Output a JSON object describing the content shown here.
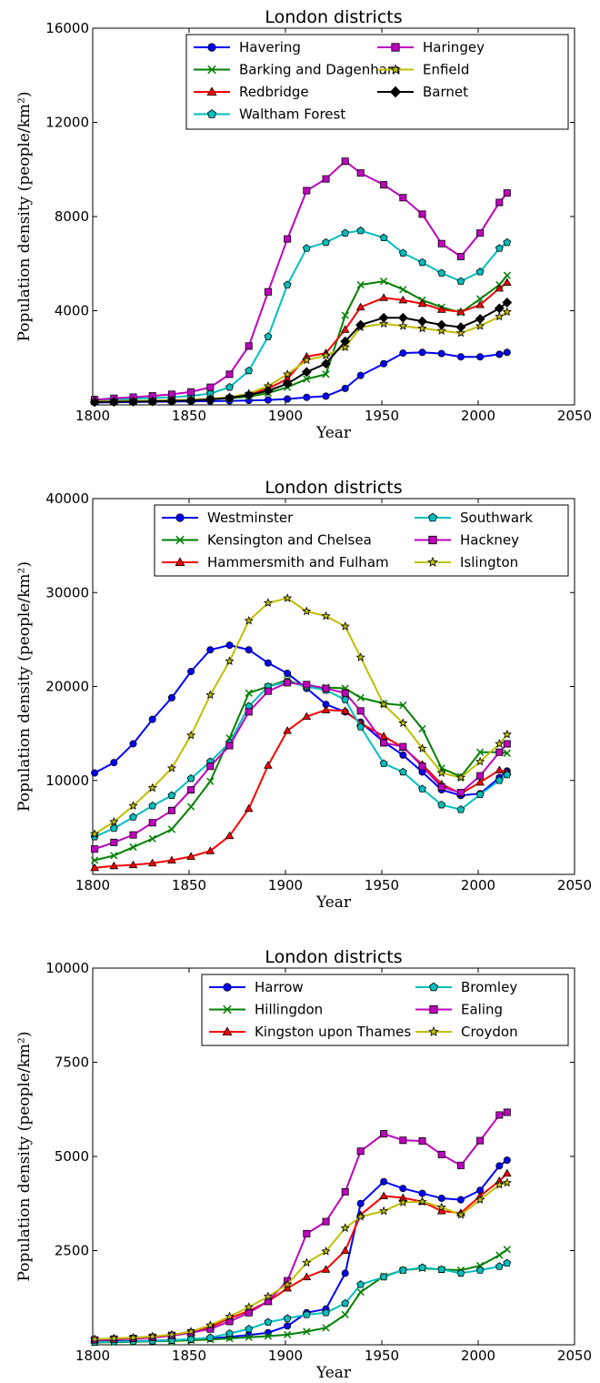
{
  "chart_data": [
    {
      "type": "line",
      "title": "London districts",
      "xlabel": "Year",
      "ylabel": "Population density (people/km²)",
      "xlim": [
        1800,
        2050
      ],
      "ylim": [
        0,
        16000
      ],
      "xticks": [
        1800,
        1850,
        1900,
        1950,
        2000,
        2050
      ],
      "yticks": [
        4000,
        8000,
        12000,
        16000
      ],
      "grid": false,
      "legend": {
        "position": "top-right",
        "columns": 2
      },
      "x": [
        1801,
        1811,
        1821,
        1831,
        1841,
        1851,
        1861,
        1871,
        1881,
        1891,
        1901,
        1911,
        1921,
        1931,
        1939,
        1951,
        1961,
        1971,
        1981,
        1991,
        2001,
        2011,
        2015
      ],
      "series": [
        {
          "name": "Havering",
          "color": "#0000ff",
          "marker": "circle",
          "values": [
            100,
            110,
            120,
            130,
            140,
            150,
            160,
            170,
            190,
            210,
            250,
            320,
            370,
            700,
            1250,
            1750,
            2200,
            2230,
            2180,
            2040,
            2040,
            2150,
            2230
          ]
        },
        {
          "name": "Barking and Dagenham",
          "color": "#008000",
          "marker": "x",
          "values": [
            150,
            160,
            170,
            180,
            190,
            210,
            240,
            280,
            350,
            500,
            750,
            1100,
            1300,
            3800,
            5100,
            5250,
            4900,
            4450,
            4150,
            3920,
            4500,
            5100,
            5500
          ]
        },
        {
          "name": "Redbridge",
          "color": "#ff0000",
          "marker": "triangle",
          "values": [
            150,
            160,
            170,
            180,
            200,
            220,
            260,
            320,
            450,
            700,
            1100,
            2050,
            2200,
            3200,
            4150,
            4550,
            4450,
            4300,
            4050,
            3950,
            4250,
            4950,
            5200
          ]
        },
        {
          "name": "Waltham Forest",
          "color": "#00bfbf",
          "marker": "pentagon",
          "values": [
            220,
            240,
            260,
            290,
            330,
            380,
            480,
            750,
            1450,
            2900,
            5100,
            6650,
            6900,
            7300,
            7400,
            7100,
            6450,
            6050,
            5600,
            5250,
            5650,
            6650,
            6900
          ]
        },
        {
          "name": "Haringey",
          "color": "#bf00bf",
          "marker": "square",
          "values": [
            220,
            280,
            330,
            380,
            450,
            550,
            750,
            1300,
            2500,
            4800,
            7050,
            9100,
            9600,
            10350,
            9850,
            9350,
            8800,
            8100,
            6850,
            6300,
            7300,
            8600,
            9000
          ]
        },
        {
          "name": "Enfield",
          "color": "#bfbf00",
          "marker": "star",
          "values": [
            150,
            160,
            170,
            180,
            200,
            220,
            260,
            330,
            480,
            800,
            1300,
            1900,
            2100,
            2450,
            3300,
            3450,
            3350,
            3250,
            3150,
            3050,
            3350,
            3750,
            3950
          ]
        },
        {
          "name": "Barnet",
          "color": "#000000",
          "marker": "diamond",
          "values": [
            120,
            130,
            140,
            150,
            170,
            190,
            230,
            300,
            420,
            600,
            900,
            1400,
            1750,
            2700,
            3400,
            3700,
            3700,
            3550,
            3400,
            3300,
            3650,
            4100,
            4350
          ]
        }
      ]
    },
    {
      "type": "line",
      "title": "London districts",
      "xlabel": "Year",
      "ylabel": "Population density (people/km²)",
      "xlim": [
        1800,
        2050
      ],
      "ylim": [
        0,
        40000
      ],
      "xticks": [
        1800,
        1850,
        1900,
        1950,
        2000,
        2050
      ],
      "yticks": [
        10000,
        20000,
        30000,
        40000
      ],
      "grid": false,
      "legend": {
        "position": "top-right",
        "columns": 2
      },
      "x": [
        1801,
        1811,
        1821,
        1831,
        1841,
        1851,
        1861,
        1871,
        1881,
        1891,
        1901,
        1911,
        1921,
        1931,
        1939,
        1951,
        1961,
        1971,
        1981,
        1991,
        2001,
        2011,
        2015
      ],
      "series": [
        {
          "name": "Westminster",
          "color": "#0000ff",
          "marker": "circle",
          "values": [
            10800,
            11900,
            13900,
            16500,
            18800,
            21600,
            23900,
            24400,
            23900,
            22500,
            21400,
            19800,
            18100,
            17300,
            16200,
            14100,
            12700,
            10900,
            9000,
            8400,
            8600,
            10300,
            11000
          ]
        },
        {
          "name": "Kensington and Chelsea",
          "color": "#008000",
          "marker": "x",
          "values": [
            1500,
            2000,
            2900,
            3800,
            4800,
            7200,
            9900,
            14500,
            19300,
            20000,
            20700,
            19900,
            19900,
            19800,
            18800,
            18200,
            18000,
            15500,
            11300,
            10400,
            13000,
            13000,
            12900
          ]
        },
        {
          "name": "Hammersmith and Fulham",
          "color": "#ff0000",
          "marker": "triangle",
          "values": [
            700,
            900,
            1000,
            1200,
            1500,
            1900,
            2500,
            4100,
            7000,
            11600,
            15300,
            16800,
            17500,
            17400,
            16100,
            14700,
            13500,
            11700,
            9600,
            8600,
            9800,
            11100,
            10900
          ]
        },
        {
          "name": "Southwark",
          "color": "#00bfbf",
          "marker": "pentagon",
          "values": [
            4000,
            4900,
            6100,
            7300,
            8400,
            10200,
            12000,
            14000,
            17900,
            20000,
            20500,
            20000,
            19600,
            18600,
            15700,
            11800,
            10900,
            9100,
            7400,
            6900,
            8500,
            10000,
            10600
          ]
        },
        {
          "name": "Hackney",
          "color": "#bf00bf",
          "marker": "square",
          "values": [
            2700,
            3400,
            4200,
            5500,
            6800,
            9000,
            11500,
            13700,
            17300,
            19500,
            20400,
            20200,
            19800,
            19300,
            17400,
            14000,
            13600,
            11500,
            9300,
            8700,
            10500,
            13000,
            13900
          ]
        },
        {
          "name": "Islington",
          "color": "#bfbf00",
          "marker": "star",
          "values": [
            4300,
            5600,
            7300,
            9200,
            11300,
            14800,
            19100,
            22700,
            27000,
            28900,
            29400,
            28000,
            27500,
            26400,
            23100,
            18100,
            16100,
            13400,
            10800,
            10300,
            12000,
            13900,
            14900
          ]
        }
      ]
    },
    {
      "type": "line",
      "title": "London districts",
      "xlabel": "Year",
      "ylabel": "Population density (people/km²)",
      "xlim": [
        1800,
        2050
      ],
      "ylim": [
        0,
        10000
      ],
      "xticks": [
        1800,
        1850,
        1900,
        1950,
        2000,
        2050
      ],
      "yticks": [
        2500,
        5000,
        7500,
        10000
      ],
      "grid": false,
      "legend": {
        "position": "top-right",
        "columns": 2
      },
      "x": [
        1801,
        1811,
        1821,
        1831,
        1841,
        1851,
        1861,
        1871,
        1881,
        1891,
        1901,
        1911,
        1921,
        1931,
        1939,
        1951,
        1961,
        1971,
        1981,
        1991,
        2001,
        2011,
        2015
      ],
      "series": [
        {
          "name": "Harrow",
          "color": "#0000ff",
          "marker": "circle",
          "values": [
            90,
            95,
            100,
            110,
            120,
            140,
            170,
            210,
            260,
            320,
            500,
            850,
            950,
            1900,
            3750,
            4330,
            4150,
            4020,
            3890,
            3850,
            4100,
            4750,
            4900
          ]
        },
        {
          "name": "Hillingdon",
          "color": "#008000",
          "marker": "x",
          "values": [
            60,
            70,
            80,
            90,
            100,
            120,
            140,
            170,
            200,
            230,
            270,
            350,
            450,
            800,
            1400,
            1820,
            1980,
            2030,
            2000,
            1980,
            2100,
            2380,
            2530
          ]
        },
        {
          "name": "Kingston upon Thames",
          "color": "#ff0000",
          "marker": "triangle",
          "values": [
            120,
            140,
            160,
            190,
            240,
            320,
            470,
            700,
            900,
            1150,
            1500,
            1800,
            2000,
            2500,
            3450,
            3950,
            3900,
            3800,
            3550,
            3500,
            3950,
            4350,
            4550
          ]
        },
        {
          "name": "Bromley",
          "color": "#00bfbf",
          "marker": "pentagon",
          "values": [
            70,
            80,
            90,
            100,
            120,
            150,
            190,
            300,
            420,
            600,
            700,
            800,
            850,
            1100,
            1600,
            1800,
            1980,
            2050,
            2000,
            1900,
            1980,
            2080,
            2170
          ]
        },
        {
          "name": "Ealing",
          "color": "#bf00bf",
          "marker": "square",
          "values": [
            130,
            150,
            170,
            200,
            250,
            320,
            420,
            620,
            850,
            1150,
            1700,
            2950,
            3270,
            4060,
            5140,
            5600,
            5430,
            5410,
            5050,
            4760,
            5420,
            6100,
            6170
          ]
        },
        {
          "name": "Croydon",
          "color": "#bfbf00",
          "marker": "star",
          "values": [
            150,
            170,
            190,
            220,
            270,
            350,
            520,
            750,
            1000,
            1280,
            1600,
            2180,
            2480,
            3100,
            3400,
            3550,
            3780,
            3800,
            3650,
            3450,
            3850,
            4250,
            4300
          ]
        }
      ]
    }
  ]
}
